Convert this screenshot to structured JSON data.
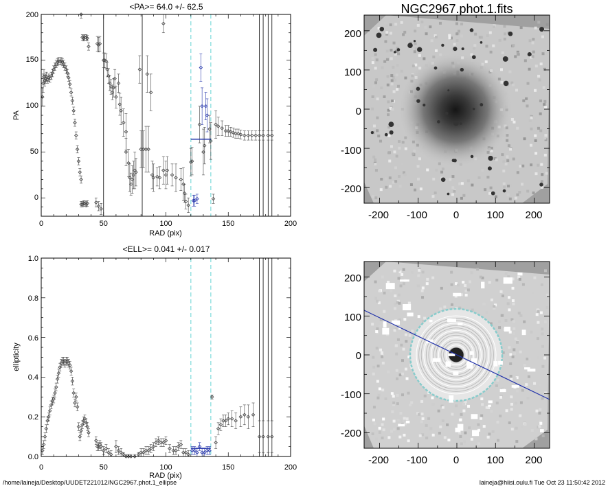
{
  "footer": {
    "path": "/home/laineja/Desktop/UUDET221012/NGC2967.phot.1_ellipse",
    "stamp": "laineja@hiisi.oulu.fi  Tue Oct 23 11:50:42 2012"
  },
  "colors": {
    "axis": "#000000",
    "points": "#444444",
    "highlight": "#2233aa",
    "dashed": "#88dddd",
    "image_gray": "#a0a0a0",
    "ellipse": "#ffffff",
    "outer_ellipse": "#88cccc"
  },
  "chart_data": [
    {
      "type": "scatter",
      "title": "<PA>=  64.0 +/-  62.5",
      "xlabel": "RAD (pix)",
      "ylabel": "PA",
      "xlim": [
        0,
        200
      ],
      "ylim": [
        -20,
        200
      ],
      "xticks": [
        "0",
        "50",
        "100",
        "150",
        "200"
      ],
      "yticks": [
        "0",
        "50",
        "100",
        "150",
        "200"
      ],
      "vlines_solid": [
        50,
        81,
        175,
        178,
        182,
        185
      ],
      "vlines_dashed": [
        120,
        136
      ],
      "mean_segment": {
        "x1": 120,
        "x2": 136,
        "y": 64
      },
      "points": [
        [
          1,
          110,
          10
        ],
        [
          1.6,
          125,
          10
        ],
        [
          2.2,
          132,
          8
        ],
        [
          2.8,
          128,
          6
        ],
        [
          3.5,
          130,
          5
        ],
        [
          4.2,
          132,
          5
        ],
        [
          5,
          129,
          4
        ],
        [
          6,
          131,
          4
        ],
        [
          7,
          130,
          4
        ],
        [
          8,
          133,
          4
        ],
        [
          9,
          136,
          4
        ],
        [
          10,
          140,
          4
        ],
        [
          11,
          143,
          4
        ],
        [
          12,
          146,
          4
        ],
        [
          13,
          148,
          4
        ],
        [
          14,
          149,
          4
        ],
        [
          15,
          149,
          4
        ],
        [
          16,
          149,
          4
        ],
        [
          17,
          148,
          4
        ],
        [
          18,
          146,
          4
        ],
        [
          19,
          143,
          4
        ],
        [
          20,
          140,
          4
        ],
        [
          21,
          136,
          4
        ],
        [
          22,
          131,
          4
        ],
        [
          23,
          124,
          4
        ],
        [
          24,
          115,
          4
        ],
        [
          25,
          106,
          4
        ],
        [
          26,
          95,
          4
        ],
        [
          27,
          82,
          4
        ],
        [
          28,
          68,
          4
        ],
        [
          29,
          53,
          4
        ],
        [
          30,
          40,
          4
        ],
        [
          31,
          28,
          4
        ],
        [
          32,
          20,
          4
        ],
        [
          32,
          -7,
          3
        ],
        [
          33,
          -7,
          3
        ],
        [
          34,
          -6,
          3
        ],
        [
          35,
          -6,
          3
        ],
        [
          36,
          -7,
          3
        ],
        [
          37,
          -6,
          3
        ],
        [
          32,
          200,
          4
        ],
        [
          33,
          175,
          3
        ],
        [
          34,
          174,
          3
        ],
        [
          35,
          175,
          3
        ],
        [
          36,
          175,
          3
        ],
        [
          37,
          174,
          3
        ],
        [
          38,
          165,
          4
        ],
        [
          45,
          168,
          8
        ],
        [
          46,
          167,
          8
        ],
        [
          47,
          168,
          8
        ],
        [
          44,
          -5,
          5
        ],
        [
          46,
          -9,
          5
        ],
        [
          48,
          -12,
          6
        ],
        [
          50,
          150,
          8
        ],
        [
          51,
          150,
          8
        ],
        [
          52,
          149,
          8
        ],
        [
          53,
          140,
          8
        ],
        [
          54,
          133,
          8
        ],
        [
          55,
          125,
          8
        ],
        [
          56,
          121,
          8
        ],
        [
          57,
          115,
          8
        ],
        [
          58,
          120,
          10
        ],
        [
          59,
          130,
          10
        ],
        [
          60,
          110,
          12
        ],
        [
          62,
          125,
          10
        ],
        [
          63,
          102,
          12
        ],
        [
          64,
          95,
          15
        ],
        [
          66,
          82,
          15
        ],
        [
          68,
          72,
          20
        ],
        [
          70,
          38,
          15
        ],
        [
          71,
          22,
          15
        ],
        [
          72,
          15,
          12
        ],
        [
          73,
          20,
          15
        ],
        [
          74,
          25,
          15
        ],
        [
          75,
          30,
          20
        ],
        [
          76,
          28,
          15
        ],
        [
          68,
          50,
          15
        ],
        [
          80,
          53,
          20
        ],
        [
          82,
          53,
          20
        ],
        [
          84,
          53,
          25
        ],
        [
          86,
          53,
          25
        ],
        [
          79,
          140,
          15
        ],
        [
          85,
          135,
          20
        ],
        [
          88,
          115,
          20
        ],
        [
          89,
          25,
          15
        ],
        [
          90,
          22,
          15
        ],
        [
          93,
          23,
          10
        ],
        [
          95,
          22,
          12
        ],
        [
          98,
          30,
          15
        ],
        [
          100,
          25,
          15
        ],
        [
          101,
          30,
          15
        ],
        [
          98,
          190,
          10
        ],
        [
          105,
          25,
          12
        ],
        [
          108,
          22,
          15
        ],
        [
          112,
          20,
          12
        ],
        [
          114,
          15,
          18
        ],
        [
          115,
          5,
          10
        ],
        [
          116,
          -4,
          8
        ],
        [
          118,
          -8,
          8
        ],
        [
          120,
          39,
          15
        ],
        [
          121,
          40,
          15
        ],
        [
          122,
          -3,
          6
        ],
        [
          123,
          -3,
          6
        ],
        [
          125,
          -1,
          5
        ],
        [
          127,
          80,
          20
        ],
        [
          128,
          142,
          15
        ],
        [
          129,
          100,
          20
        ],
        [
          130,
          50,
          25
        ],
        [
          131,
          57,
          20
        ],
        [
          132,
          100,
          15
        ],
        [
          133,
          90,
          18
        ],
        [
          135,
          75,
          15
        ],
        [
          136,
          62,
          20
        ],
        [
          138,
          -1,
          5
        ],
        [
          140,
          80,
          15
        ],
        [
          142,
          78,
          10
        ],
        [
          145,
          76,
          8
        ],
        [
          148,
          73,
          6
        ],
        [
          150,
          73,
          6
        ],
        [
          152,
          72,
          5
        ],
        [
          154,
          71,
          5
        ],
        [
          156,
          70,
          5
        ],
        [
          158,
          70,
          5
        ],
        [
          160,
          69,
          5
        ],
        [
          163,
          68,
          5
        ],
        [
          166,
          68,
          5
        ],
        [
          169,
          68,
          5
        ],
        [
          172,
          68,
          5
        ],
        [
          175,
          68,
          5
        ],
        [
          178,
          68,
          5
        ],
        [
          182,
          68,
          5
        ],
        [
          185,
          68,
          5
        ]
      ]
    },
    {
      "type": "scatter",
      "title": "<ELL>= 0.041 +/-  0.017",
      "xlabel": "RAD (pix)",
      "ylabel": "ellipticity",
      "xlim": [
        0,
        200
      ],
      "ylim": [
        0,
        1
      ],
      "xticks": [
        "0",
        "50",
        "100",
        "150",
        "200"
      ],
      "yticks": [
        "0.0",
        "0.2",
        "0.4",
        "0.6",
        "0.8",
        "1.0"
      ],
      "vlines_solid": [
        175,
        178,
        182,
        185
      ],
      "vlines_dashed": [
        120,
        136
      ],
      "mean_segment": {
        "x1": 120,
        "x2": 136,
        "y": 0.041
      },
      "points": [
        [
          1,
          0.03,
          0.02
        ],
        [
          2,
          0.06,
          0.02
        ],
        [
          3,
          0.1,
          0.02
        ],
        [
          4,
          0.14,
          0.02
        ],
        [
          5,
          0.18,
          0.02
        ],
        [
          6,
          0.2,
          0.02
        ],
        [
          7,
          0.23,
          0.02
        ],
        [
          8,
          0.26,
          0.02
        ],
        [
          9,
          0.28,
          0.02
        ],
        [
          10,
          0.29,
          0.02
        ],
        [
          11,
          0.32,
          0.02
        ],
        [
          12,
          0.35,
          0.02
        ],
        [
          13,
          0.39,
          0.02
        ],
        [
          14,
          0.42,
          0.02
        ],
        [
          15,
          0.45,
          0.02
        ],
        [
          16,
          0.47,
          0.02
        ],
        [
          17,
          0.48,
          0.02
        ],
        [
          18,
          0.48,
          0.02
        ],
        [
          19,
          0.47,
          0.02
        ],
        [
          20,
          0.48,
          0.02
        ],
        [
          21,
          0.48,
          0.02
        ],
        [
          22,
          0.47,
          0.02
        ],
        [
          23,
          0.46,
          0.02
        ],
        [
          24,
          0.43,
          0.02
        ],
        [
          25,
          0.38,
          0.02
        ],
        [
          26,
          0.32,
          0.02
        ],
        [
          27,
          0.27,
          0.02
        ],
        [
          28,
          0.3,
          0.02
        ],
        [
          29,
          0.25,
          0.02
        ],
        [
          30,
          0.15,
          0.02
        ],
        [
          31,
          0.1,
          0.02
        ],
        [
          32,
          0.13,
          0.02
        ],
        [
          33,
          0.16,
          0.02
        ],
        [
          34,
          0.18,
          0.02
        ],
        [
          35,
          0.19,
          0.02
        ],
        [
          36,
          0.17,
          0.02
        ],
        [
          37,
          0.15,
          0.02
        ],
        [
          38,
          0.12,
          0.02
        ],
        [
          44,
          0.08,
          0.02
        ],
        [
          45,
          0.05,
          0.02
        ],
        [
          46,
          0.05,
          0.02
        ],
        [
          47,
          0.06,
          0.02
        ],
        [
          48,
          0.05,
          0.02
        ],
        [
          50,
          0.03,
          0.02
        ],
        [
          52,
          0.04,
          0.02
        ],
        [
          54,
          0.02,
          0.02
        ],
        [
          56,
          0.01,
          0.02
        ],
        [
          60,
          0.05,
          0.03
        ],
        [
          62,
          0.03,
          0.02
        ],
        [
          64,
          0.02,
          0.02
        ],
        [
          66,
          0.01,
          0.01
        ],
        [
          68,
          0.0,
          0.01
        ],
        [
          70,
          0.0,
          0.01
        ],
        [
          72,
          0.0,
          0.01
        ],
        [
          75,
          0.0,
          0.01
        ],
        [
          78,
          0.01,
          0.01
        ],
        [
          80,
          0.02,
          0.02
        ],
        [
          82,
          0.02,
          0.02
        ],
        [
          84,
          0.03,
          0.02
        ],
        [
          86,
          0.03,
          0.02
        ],
        [
          88,
          0.04,
          0.02
        ],
        [
          90,
          0.05,
          0.02
        ],
        [
          92,
          0.07,
          0.02
        ],
        [
          94,
          0.08,
          0.02
        ],
        [
          96,
          0.07,
          0.02
        ],
        [
          98,
          0.07,
          0.02
        ],
        [
          100,
          0.08,
          0.02
        ],
        [
          103,
          0.04,
          0.02
        ],
        [
          106,
          0.03,
          0.02
        ],
        [
          108,
          0.03,
          0.02
        ],
        [
          110,
          0.05,
          0.02
        ],
        [
          112,
          0.06,
          0.02
        ],
        [
          114,
          0.02,
          0.02
        ],
        [
          116,
          0.02,
          0.02
        ],
        [
          118,
          0.01,
          0.02
        ],
        [
          121,
          0.03,
          0.02
        ],
        [
          123,
          0.03,
          0.02
        ],
        [
          125,
          0.02,
          0.02
        ],
        [
          127,
          0.05,
          0.02
        ],
        [
          129,
          0.02,
          0.02
        ],
        [
          131,
          0.02,
          0.02
        ],
        [
          133,
          0.03,
          0.02
        ],
        [
          135,
          0.03,
          0.02
        ],
        [
          137,
          0.3,
          0.01
        ],
        [
          140,
          0.07,
          0.03
        ],
        [
          142,
          0.14,
          0.03
        ],
        [
          144,
          0.16,
          0.03
        ],
        [
          146,
          0.18,
          0.03
        ],
        [
          148,
          0.18,
          0.03
        ],
        [
          150,
          0.19,
          0.03
        ],
        [
          153,
          0.19,
          0.04
        ],
        [
          156,
          0.18,
          0.04
        ],
        [
          160,
          0.2,
          0.05
        ],
        [
          163,
          0.21,
          0.05
        ],
        [
          166,
          0.2,
          0.06
        ],
        [
          170,
          0.21,
          0.06
        ],
        [
          175,
          0.1,
          0.08
        ],
        [
          178,
          0.1,
          0.08
        ],
        [
          182,
          0.1,
          0.08
        ],
        [
          185,
          0.1,
          0.08
        ]
      ]
    },
    {
      "type": "heatmap",
      "title": "NGC2967.phot.1.fits",
      "xlim": [
        -240,
        240
      ],
      "ylim": [
        -240,
        240
      ],
      "xticks": [
        "-200",
        "-100",
        "0",
        "100",
        "200"
      ],
      "yticks": [
        "-200",
        "-100",
        "0",
        "100",
        "200"
      ]
    },
    {
      "type": "heatmap",
      "title": "",
      "xlim": [
        -240,
        240
      ],
      "ylim": [
        -240,
        240
      ],
      "xticks": [
        "-200",
        "-100",
        "0",
        "100",
        "200"
      ],
      "yticks": [
        "-200",
        "-100",
        "0",
        "100",
        "200"
      ]
    }
  ]
}
